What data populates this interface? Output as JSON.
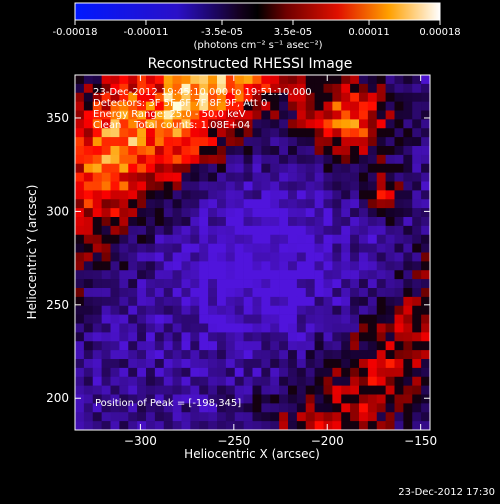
{
  "colorbar": {
    "ticks": [
      "-0.00018",
      "-0.00011",
      "-3.5e-05",
      "3.5e-05",
      "0.00011",
      "0.00018"
    ],
    "tick_values": [
      -0.00018,
      -0.00011,
      -3.5e-05,
      3.5e-05,
      0.00011,
      0.00018
    ],
    "unit_label": "(photons cm⁻² s⁻¹ asec⁻²)",
    "range": [
      -0.00018,
      0.00018
    ],
    "colormap": "blue-black-red-yellow-white"
  },
  "chart_data": {
    "type": "heatmap",
    "title": "Reconstructed RHESSI Image",
    "xlabel": "Heliocentric X (arcsec)",
    "ylabel": "Heliocentric Y (arcsec)",
    "xlim": [
      -335,
      -145
    ],
    "ylim": [
      183,
      373
    ],
    "xticks": [
      -300,
      -250,
      -200,
      -150
    ],
    "yticks": [
      200,
      250,
      300,
      350
    ],
    "xtick_labels": [
      "−300",
      "−250",
      "−200",
      "−150"
    ],
    "ytick_labels": [
      "200",
      "250",
      "300",
      "350"
    ],
    "grid": false,
    "info_lines": [
      "23-Dec-2012 19:45:10.000 to 19:51:10.000",
      "Detectors: 3F 5F 6F 7F 8F 9F, Att 0",
      "Energy Range: 25.0 - 50.0 keV",
      "Clean    Total counts: 1.08E+04"
    ],
    "peak_label": "Position of Peak = [-198,345]",
    "peak_position": [
      -198,
      345
    ]
  },
  "footer": {
    "timestamp": "23-Dec-2012 17:30"
  },
  "colors": {
    "background": "#000000",
    "text": "#ffffff"
  }
}
